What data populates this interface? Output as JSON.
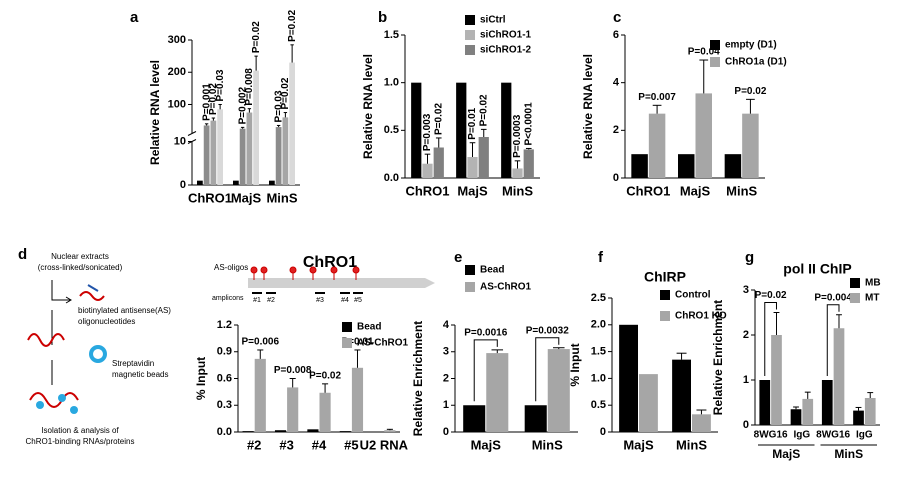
{
  "chart_data": [
    {
      "label": "a",
      "type": "bar",
      "ylabel": "Relative RNA level",
      "categories": [
        "ChRO1",
        "MajS",
        "MinS"
      ],
      "ylim": [
        0,
        300
      ],
      "ybreak": 10,
      "yticks": [
        0,
        10,
        100,
        200,
        300
      ],
      "p_style": "rotated",
      "series": [
        {
          "color": "#000000",
          "values": [
            1,
            1,
            1
          ]
        },
        {
          "color": "#8c8c8c",
          "values": [
            35,
            25,
            30
          ],
          "errors": [
            5,
            4,
            5
          ],
          "p_labels": [
            "P=0.001",
            "P=0.002",
            "P=0.03"
          ]
        },
        {
          "color": "#a6a6a6",
          "values": [
            50,
            75,
            60
          ],
          "errors": [
            8,
            12,
            15
          ],
          "p_labels": [
            "P=0.02",
            "P=0.008",
            "P=0.02"
          ]
        },
        {
          "color": "#d9d9d9",
          "values": [
            85,
            205,
            230
          ],
          "errors": [
            15,
            45,
            55
          ],
          "p_labels": [
            "P=0.03",
            "P=0.02",
            "P=0.02"
          ]
        }
      ]
    },
    {
      "label": "b",
      "type": "bar",
      "ylabel": "Relative RNA level",
      "categories": [
        "ChRO1",
        "MajS",
        "MinS"
      ],
      "ylim": [
        0,
        1.5
      ],
      "yticks": [
        {
          "value": 0,
          "label": "0.0"
        },
        0.5,
        {
          "value": 1,
          "label": "1.0"
        },
        1.5
      ],
      "p_style": "rotated",
      "legend": "top-right",
      "series": [
        {
          "name": "siCtrl",
          "color": "#000000",
          "values": [
            1,
            1,
            1
          ]
        },
        {
          "name": "siChRO1-1",
          "color": "#b3b3b3",
          "values": [
            0.15,
            0.22,
            0.1
          ],
          "errors": [
            0.1,
            0.15,
            0.08
          ],
          "p_labels": [
            "P=0.003",
            "P=0.01",
            "P=0.0003"
          ]
        },
        {
          "name": "siChRO1-2",
          "color": "#808080",
          "values": [
            0.32,
            0.43,
            0.3
          ],
          "errors": [
            0.1,
            0.08,
            0.01
          ],
          "p_labels": [
            "P=0.02",
            "P=0.02",
            "P<0.0001"
          ]
        }
      ]
    },
    {
      "label": "c",
      "type": "bar",
      "ylabel": "Relative RNA level",
      "categories": [
        "ChRO1",
        "MajS",
        "MinS"
      ],
      "ylim": [
        0,
        6
      ],
      "yticks": [
        0,
        2,
        4,
        6
      ],
      "p_style": "above",
      "legend": "top-right",
      "series": [
        {
          "name": "empty (D1)",
          "color": "#000000",
          "values": [
            1,
            1,
            1
          ]
        },
        {
          "name": "ChRO1a (D1)",
          "color": "#a6a6a6",
          "values": [
            2.7,
            3.55,
            2.7
          ],
          "errors": [
            0.35,
            1.4,
            0.6
          ],
          "p_labels": [
            "P=0.007",
            "P=0.04",
            "P=0.02"
          ]
        }
      ]
    },
    {
      "label": "d",
      "type": "bar",
      "ylabel": "% Input",
      "categories": [
        "#2",
        "#3",
        "#4",
        "#5",
        "U2 RNA"
      ],
      "ylim": [
        0,
        1.2
      ],
      "yticks": [
        {
          "value": 0,
          "label": "0.0"
        },
        0.3,
        0.6,
        0.9,
        1.2
      ],
      "p_style": "above",
      "legend": "top-right",
      "series": [
        {
          "name": "Bead",
          "color": "#000000",
          "values": [
            0.01,
            0.02,
            0.03,
            0.01,
            0.005
          ]
        },
        {
          "name": "AS-ChRO1",
          "color": "#a6a6a6",
          "values": [
            0.82,
            0.5,
            0.44,
            0.72,
            0.02
          ],
          "errors": [
            0.1,
            0.1,
            0.1,
            0.2,
            0.01
          ],
          "p_labels": [
            "P=0.006",
            "P=0.008",
            "P=0.02",
            "P=0.01",
            null
          ]
        }
      ]
    },
    {
      "label": "e",
      "type": "bar",
      "ylabel": "Relative Enrichment",
      "categories": [
        "MajS",
        "MinS"
      ],
      "ylim": [
        0,
        4
      ],
      "yticks": [
        0,
        1,
        2,
        3,
        4
      ],
      "p_style": "bracket",
      "legend": "top-left",
      "series": [
        {
          "name": "Bead",
          "color": "#000000",
          "values": [
            1,
            1
          ]
        },
        {
          "name": "AS-ChRO1",
          "color": "#a6a6a6",
          "values": [
            2.95,
            3.1
          ],
          "errors": [
            0.12,
            0.05
          ],
          "p_labels": [
            "P=0.0016",
            "P=0.0032"
          ]
        }
      ]
    },
    {
      "label": "f",
      "type": "bar",
      "title": "ChIRP",
      "ylabel": "% Input",
      "categories": [
        "MajS",
        "MinS"
      ],
      "ylim": [
        0,
        2.5
      ],
      "yticks": [
        0,
        0.5,
        {
          "value": 1,
          "label": "1.0"
        },
        1.5,
        {
          "value": 2,
          "label": "2.0"
        },
        2.5
      ],
      "legend": "top-right",
      "series": [
        {
          "name": "Control",
          "color": "#000000",
          "values": [
            2.0,
            1.35
          ],
          "errors": [
            null,
            0.12
          ]
        },
        {
          "name": "ChRO1 KO",
          "color": "#a6a6a6",
          "values": [
            1.08,
            0.33
          ],
          "errors": [
            null,
            0.08
          ]
        }
      ]
    },
    {
      "label": "g",
      "type": "bar",
      "title": "pol II ChIP",
      "ylabel": "Relative Enrichment",
      "categories": [
        "8WG16",
        "IgG",
        "8WG16",
        "IgG"
      ],
      "groups": [
        "MajS",
        "MinS"
      ],
      "ylim": [
        0,
        3
      ],
      "yticks": [
        0,
        1,
        2,
        3
      ],
      "p_style": "bracket",
      "legend": "top-right",
      "series": [
        {
          "name": "MB",
          "color": "#000000",
          "values": [
            1,
            0.35,
            1,
            0.32
          ],
          "errors": [
            null,
            0.05,
            null,
            0.07
          ]
        },
        {
          "name": "MT",
          "color": "#a6a6a6",
          "values": [
            2.0,
            0.58,
            2.15,
            0.6
          ],
          "errors": [
            0.5,
            0.15,
            0.3,
            0.12
          ],
          "p_labels": [
            "P=0.02",
            null,
            "P=0.004",
            null
          ]
        }
      ]
    }
  ],
  "diagram": {
    "steps": [
      [
        "Nuclear extracts",
        "(cross-linked/sonicated)"
      ],
      [
        "biotinylated antisense(AS)",
        "oligonucleotides"
      ],
      [
        "Streptavidin",
        "magnetic beads"
      ],
      [
        "Isolation & analysis of",
        "ChRO1-binding RNAs/proteins"
      ]
    ],
    "map": {
      "title": "ChRO1",
      "oligos_label": "AS-oligos",
      "amplicons_label": "amplicons",
      "amplicons": [
        "#1",
        "#2",
        "#3",
        "#4",
        "#5"
      ]
    }
  }
}
